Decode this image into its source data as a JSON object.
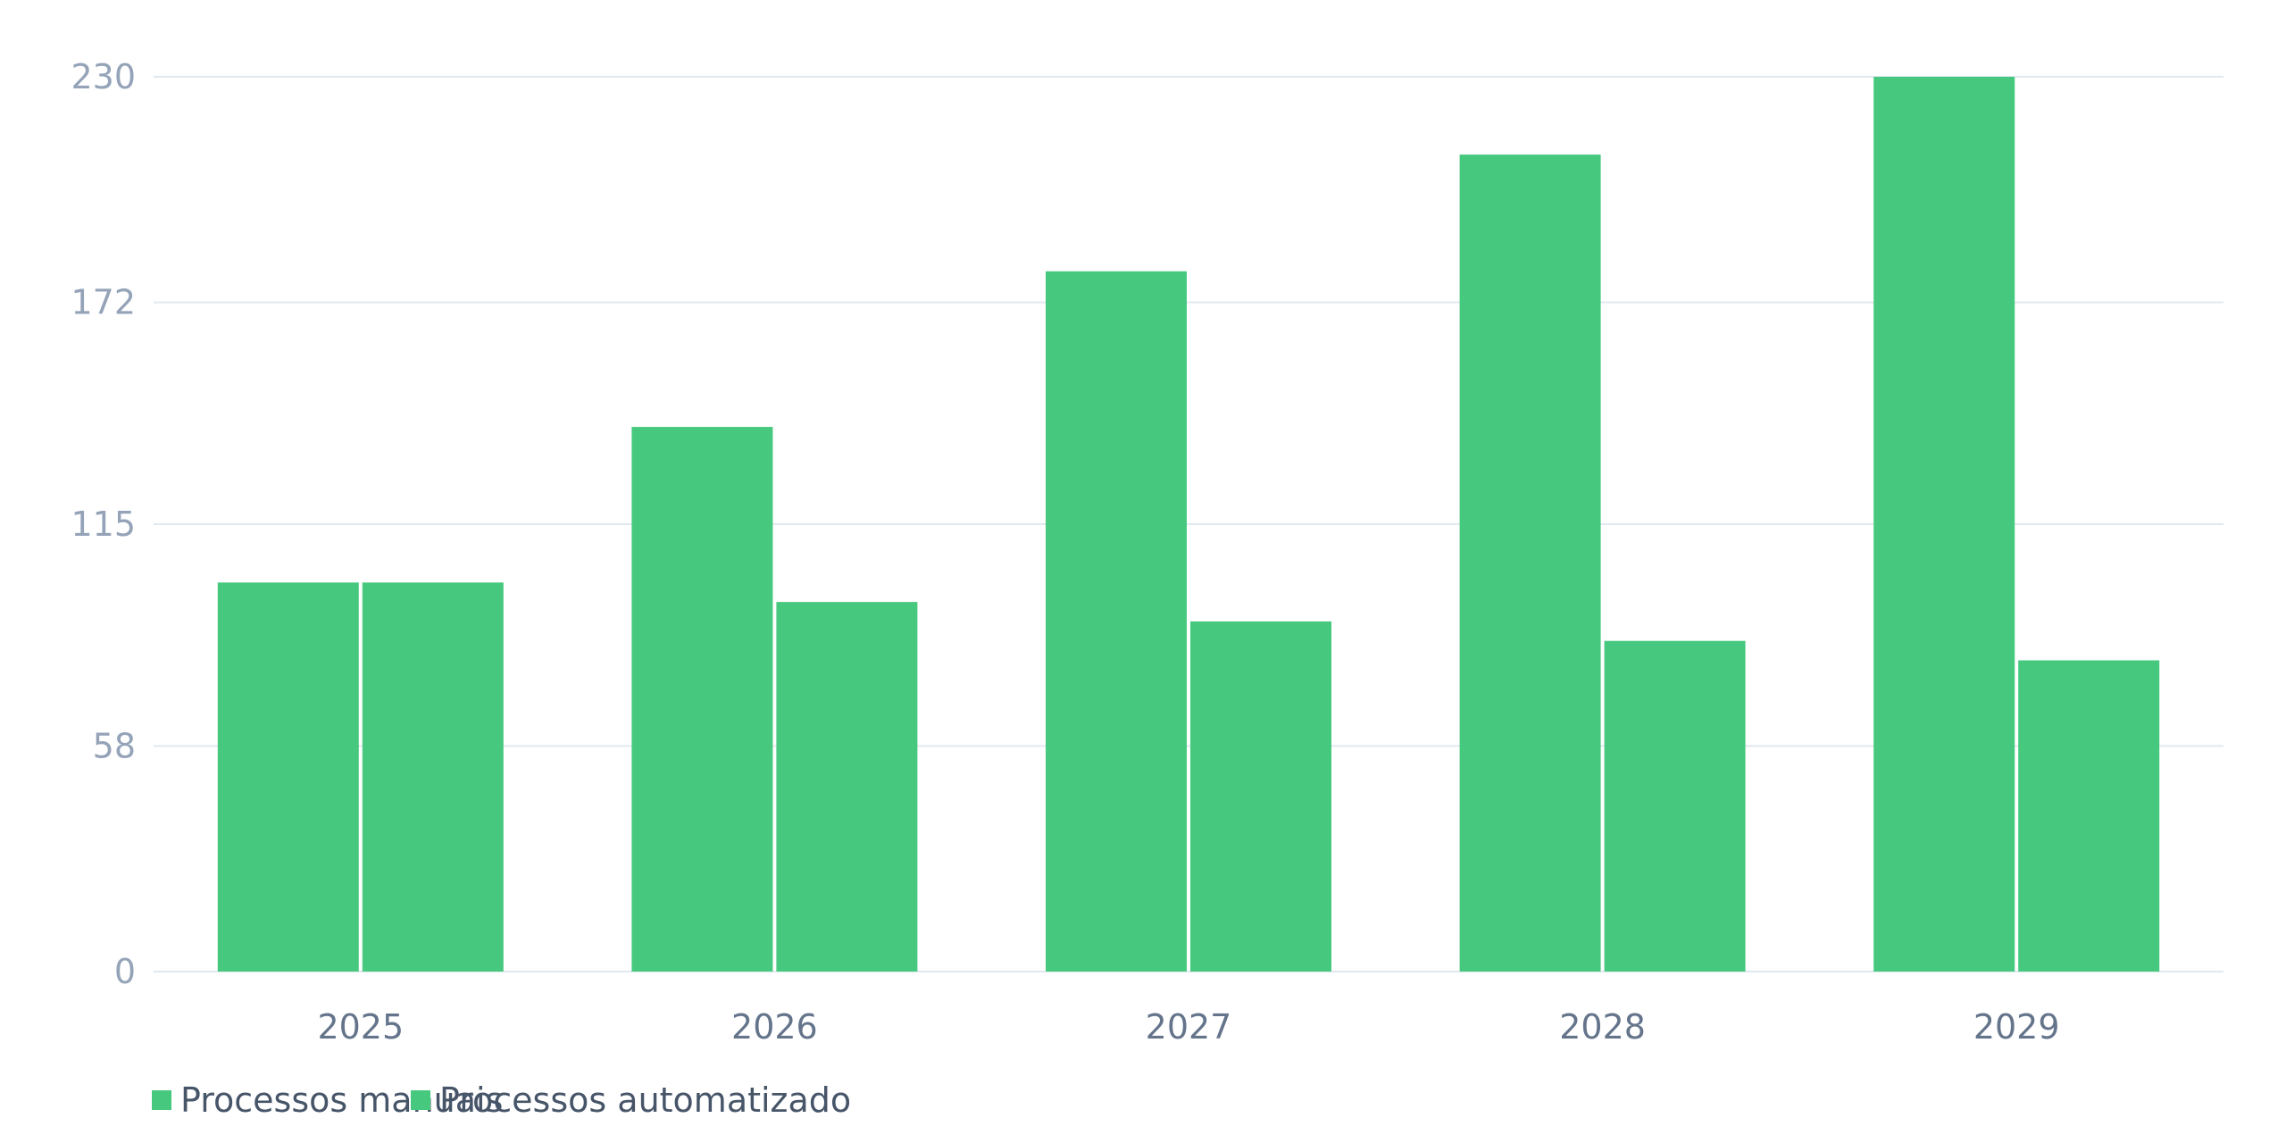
{
  "chart_data": {
    "type": "bar",
    "categories": [
      "2025",
      "2026",
      "2027",
      "2028",
      "2029"
    ],
    "series": [
      {
        "name": "Processos manuais",
        "values": [
          100,
          140,
          180,
          210,
          230
        ],
        "color": "#46c97e"
      },
      {
        "name": "Processos automatizado",
        "values": [
          100,
          95,
          90,
          85,
          80
        ],
        "color": "#46c97e"
      }
    ],
    "y_ticks": [
      "0",
      "58",
      "115",
      "172",
      "230"
    ],
    "ylim": [
      0,
      230
    ],
    "grid": true,
    "legend_position": "bottom-left",
    "title": "",
    "xlabel": "",
    "ylabel": ""
  }
}
